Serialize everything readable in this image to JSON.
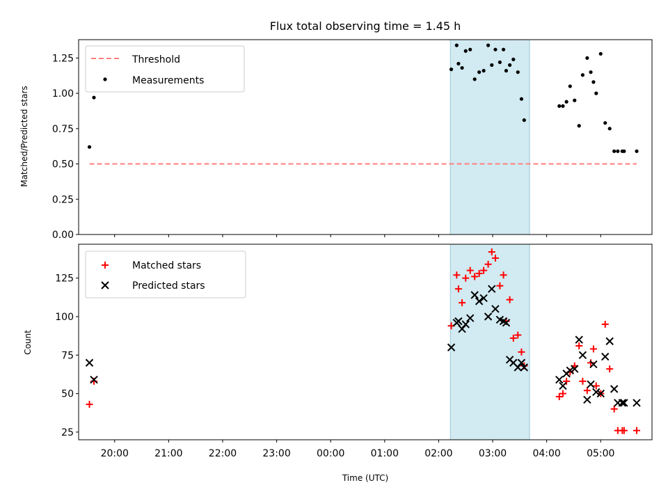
{
  "chart_data": [
    {
      "type": "scatter",
      "title": "Flux total observing time = 1.45 h",
      "xlabel": "",
      "ylabel": "Matched/Predicted stars",
      "xlim": [
        "19:20",
        "05:57"
      ],
      "ylim": [
        0,
        1.38
      ],
      "yticks": [
        0.0,
        0.25,
        0.5,
        0.75,
        1.0,
        1.25
      ],
      "ytick_labels": [
        "0.00",
        "0.25",
        "0.50",
        "0.75",
        "1.00",
        "1.25"
      ],
      "xticks": [
        "20:00",
        "21:00",
        "22:00",
        "23:00",
        "00:00",
        "01:00",
        "02:00",
        "03:00",
        "04:00",
        "05:00"
      ],
      "shaded_interval": {
        "start": "02:13",
        "end": "03:41",
        "color": "#add8e6"
      },
      "legend": {
        "placement": "top-left",
        "entries": [
          "Threshold",
          "Measurements"
        ]
      },
      "series": [
        {
          "name": "Threshold",
          "kind": "dashed-line",
          "color": "#ff7f7f",
          "x": [
            "19:32",
            "05:40"
          ],
          "y": [
            0.5,
            0.5
          ]
        },
        {
          "name": "Measurements",
          "kind": "dots",
          "color": "#000000",
          "x": [
            "19:32",
            "19:37",
            "02:14",
            "02:20",
            "02:22",
            "02:26",
            "02:30",
            "02:35",
            "02:40",
            "02:45",
            "02:50",
            "02:55",
            "02:59",
            "03:03",
            "03:08",
            "03:12",
            "03:15",
            "03:19",
            "03:23",
            "03:28",
            "03:32",
            "03:35",
            "04:14",
            "04:18",
            "04:22",
            "04:26",
            "04:31",
            "04:36",
            "04:40",
            "04:45",
            "04:49",
            "04:52",
            "04:55",
            "05:00",
            "05:05",
            "05:10",
            "05:15",
            "05:19",
            "05:24",
            "05:26",
            "05:40"
          ],
          "y": [
            0.62,
            0.97,
            1.17,
            1.34,
            1.21,
            1.18,
            1.3,
            1.31,
            1.1,
            1.15,
            1.16,
            1.34,
            1.2,
            1.31,
            1.22,
            1.31,
            1.16,
            1.2,
            1.24,
            1.15,
            0.96,
            0.81,
            0.91,
            0.91,
            0.94,
            1.05,
            0.95,
            0.77,
            1.13,
            1.25,
            1.15,
            1.08,
            1.0,
            1.28,
            0.79,
            0.75,
            0.59,
            0.59,
            0.59,
            0.59,
            0.59
          ]
        }
      ]
    },
    {
      "type": "scatter",
      "title": "",
      "xlabel": "Time (UTC)",
      "ylabel": "Count",
      "xlim": [
        "19:20",
        "05:57"
      ],
      "ylim": [
        20,
        147
      ],
      "yticks": [
        25,
        50,
        75,
        100,
        125
      ],
      "ytick_labels": [
        "25",
        "50",
        "75",
        "100",
        "125"
      ],
      "xticks": [
        "20:00",
        "21:00",
        "22:00",
        "23:00",
        "00:00",
        "01:00",
        "02:00",
        "03:00",
        "04:00",
        "05:00"
      ],
      "xtick_labels": [
        "20:00",
        "21:00",
        "22:00",
        "23:00",
        "00:00",
        "01:00",
        "02:00",
        "03:00",
        "04:00",
        "05:00"
      ],
      "shaded_interval": {
        "start": "02:13",
        "end": "03:41",
        "color": "#add8e6"
      },
      "legend": {
        "placement": "top-left",
        "entries": [
          "Matched stars",
          "Predicted stars"
        ]
      },
      "series": [
        {
          "name": "Matched stars",
          "kind": "plus",
          "color": "#ff0000",
          "x": [
            "19:32",
            "19:37",
            "02:14",
            "02:20",
            "02:22",
            "02:26",
            "02:30",
            "02:35",
            "02:40",
            "02:45",
            "02:50",
            "02:55",
            "02:59",
            "03:03",
            "03:08",
            "03:12",
            "03:15",
            "03:19",
            "03:23",
            "03:28",
            "03:32",
            "03:35",
            "04:14",
            "04:18",
            "04:22",
            "04:26",
            "04:31",
            "04:36",
            "04:40",
            "04:45",
            "04:49",
            "04:52",
            "04:55",
            "05:00",
            "05:05",
            "05:10",
            "05:15",
            "05:19",
            "05:24",
            "05:26",
            "05:40"
          ],
          "y": [
            43,
            58,
            94,
            127,
            118,
            109,
            125,
            130,
            126,
            128,
            130,
            134,
            142,
            138,
            120,
            127,
            97,
            111,
            86,
            88,
            77,
            68,
            48,
            50,
            58,
            64,
            68,
            81,
            58,
            52,
            70,
            79,
            55,
            50,
            95,
            66,
            40,
            26,
            26,
            26,
            26
          ]
        },
        {
          "name": "Predicted stars",
          "kind": "x",
          "color": "#000000",
          "x": [
            "19:32",
            "19:37",
            "02:14",
            "02:20",
            "02:22",
            "02:26",
            "02:30",
            "02:35",
            "02:40",
            "02:45",
            "02:50",
            "02:55",
            "02:59",
            "03:03",
            "03:08",
            "03:12",
            "03:15",
            "03:19",
            "03:23",
            "03:28",
            "03:32",
            "03:35",
            "04:14",
            "04:18",
            "04:22",
            "04:26",
            "04:31",
            "04:36",
            "04:40",
            "04:45",
            "04:49",
            "04:52",
            "04:55",
            "05:00",
            "05:05",
            "05:10",
            "05:15",
            "05:19",
            "05:24",
            "05:26",
            "05:40"
          ],
          "y": [
            70,
            59,
            80,
            96,
            97,
            92,
            95,
            99,
            114,
            110,
            112,
            100,
            118,
            105,
            98,
            97,
            96,
            72,
            70,
            67,
            70,
            67,
            59,
            55,
            63,
            65,
            66,
            85,
            75,
            46,
            56,
            69,
            51,
            50,
            74,
            84,
            53,
            44,
            44,
            44,
            44
          ]
        }
      ]
    }
  ]
}
